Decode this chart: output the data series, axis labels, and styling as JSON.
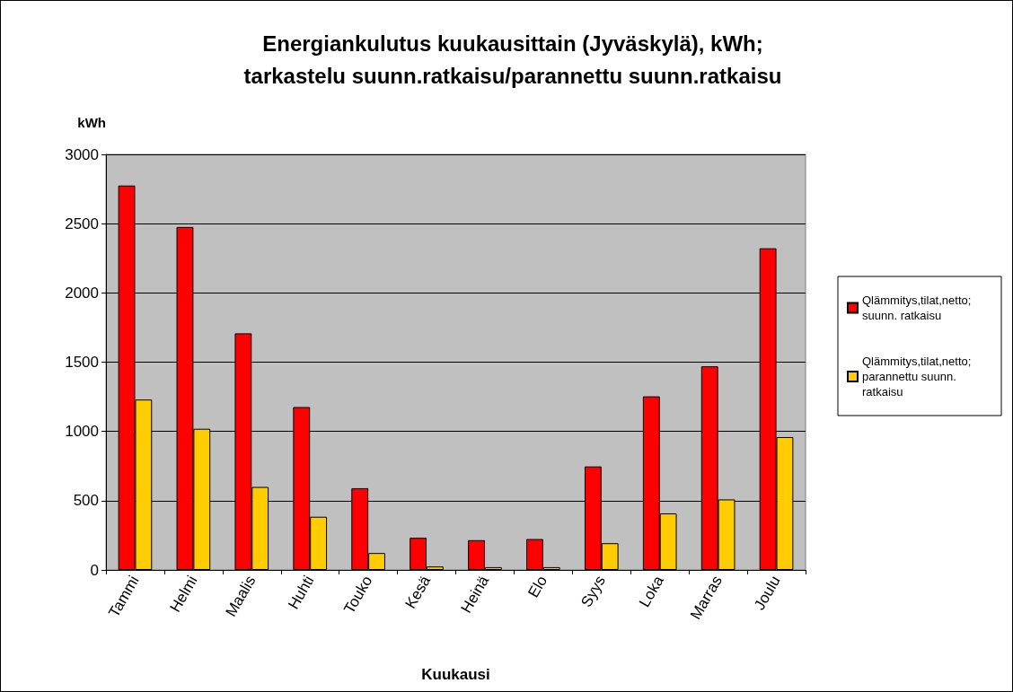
{
  "chart_data": {
    "type": "bar",
    "title": "Energiankulutus kuukausittain (Jyväskylä), kWh;\ntarkastelu suunn.ratkaisu/parannettu suunn.ratkaisu",
    "xlabel": "Kuukausi",
    "ylabel": "kWh",
    "categories": [
      "Tammi",
      "Helmi",
      "Maalis",
      "Huhti",
      "Touko",
      "Kesä",
      "Heinä",
      "Elo",
      "Syys",
      "Loka",
      "Marras",
      "Joulu"
    ],
    "series": [
      {
        "name": "Qlämmitys,tilat,netto; suunn. ratkaisu",
        "color": "#ff0000",
        "values": [
          2775,
          2476,
          1708,
          1176,
          590,
          232,
          215,
          223,
          747,
          1253,
          1470,
          2322
        ]
      },
      {
        "name": "Qlämmitys,tilat,netto; parannettu suunn. ratkaisu",
        "color": "#ffcc00",
        "values": [
          1230,
          1019,
          599,
          384,
          122,
          25,
          20,
          20,
          193,
          408,
          509,
          959
        ]
      }
    ],
    "ylim": [
      0,
      3000
    ],
    "yticks": [
      0,
      500,
      1000,
      1500,
      2000,
      2500,
      3000
    ],
    "grid": "y",
    "legend": "right"
  }
}
